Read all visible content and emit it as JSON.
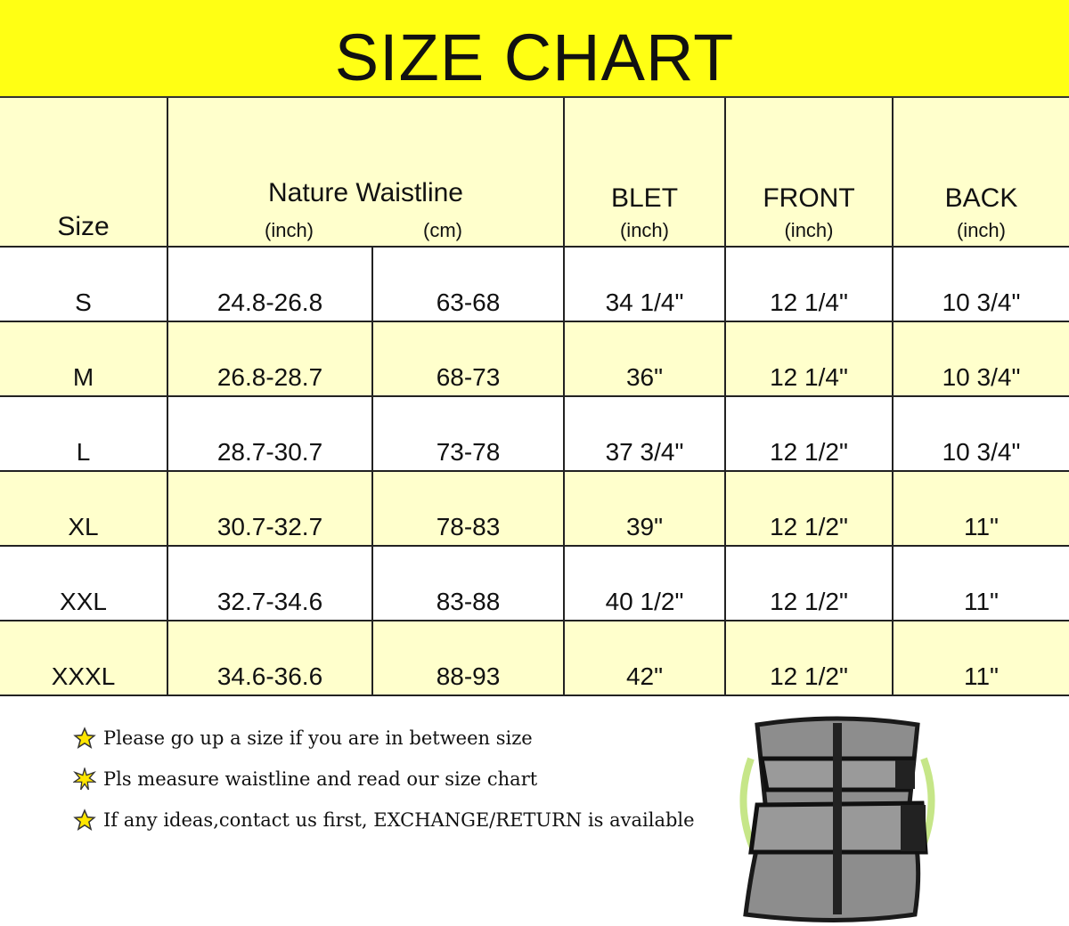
{
  "title": "SIZE CHART",
  "header": {
    "size": "Size",
    "waistline": "Nature Waistline",
    "waist_inch": "(inch)",
    "waist_cm": "(cm)",
    "belt": "BLET",
    "belt_unit": "(inch)",
    "front": "FRONT",
    "front_unit": "(inch)",
    "back": "BACK",
    "back_unit": "(inch)"
  },
  "rows": [
    {
      "size": "S",
      "inch": "24.8-26.8",
      "cm": "63-68",
      "belt": "34 1/4\"",
      "front": "12 1/4\"",
      "back": "10 3/4\""
    },
    {
      "size": "M",
      "inch": "26.8-28.7",
      "cm": "68-73",
      "belt": "36\"",
      "front": "12 1/4\"",
      "back": "10 3/4\""
    },
    {
      "size": "L",
      "inch": "28.7-30.7",
      "cm": "73-78",
      "belt": "37 3/4\"",
      "front": "12 1/2\"",
      "back": "10 3/4\""
    },
    {
      "size": "XL",
      "inch": "30.7-32.7",
      "cm": "78-83",
      "belt": "39\"",
      "front": "12 1/2\"",
      "back": "11\""
    },
    {
      "size": "XXL",
      "inch": "32.7-34.6",
      "cm": "83-88",
      "belt": "40 1/2\"",
      "front": "12 1/2\"",
      "back": "11\""
    },
    {
      "size": "XXXL",
      "inch": "34.6-36.6",
      "cm": "88-93",
      "belt": "42\"",
      "front": "12 1/2\"",
      "back": "11\""
    }
  ],
  "notes": [
    {
      "icon": "star-icon",
      "text": "Please go up a size if you are in between size"
    },
    {
      "icon": "star-burst-icon",
      "text": "Pls measure waistline and read our size chart"
    },
    {
      "icon": "star-icon",
      "text": "If any ideas,contact us first, EXCHANGE/RETURN is available"
    }
  ],
  "colors": {
    "title_band": "#ffff14",
    "header_bg": "#ffffcc",
    "alt_row": "#ffffcc",
    "star": "#ffe600"
  }
}
